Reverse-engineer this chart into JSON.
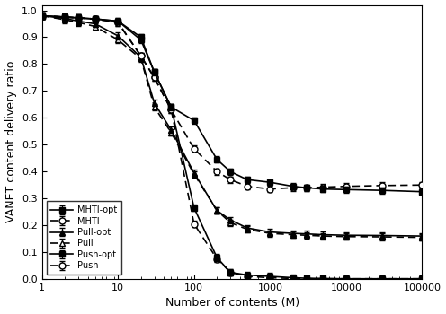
{
  "x": [
    1,
    2,
    3,
    5,
    10,
    20,
    30,
    50,
    100,
    200,
    300,
    500,
    1000,
    2000,
    3000,
    5000,
    10000,
    30000,
    100000
  ],
  "MHTI_opt": [
    0.98,
    0.975,
    0.972,
    0.968,
    0.96,
    0.9,
    0.77,
    0.64,
    0.59,
    0.445,
    0.4,
    0.37,
    0.36,
    0.345,
    0.34,
    0.335,
    0.333,
    0.33,
    0.325
  ],
  "MHTI": [
    0.98,
    0.975,
    0.972,
    0.968,
    0.955,
    0.83,
    0.75,
    0.63,
    0.485,
    0.4,
    0.37,
    0.345,
    0.335,
    0.34,
    0.34,
    0.342,
    0.345,
    0.348,
    0.35
  ],
  "Pull_opt": [
    0.98,
    0.97,
    0.96,
    0.95,
    0.905,
    0.825,
    0.655,
    0.555,
    0.395,
    0.255,
    0.22,
    0.19,
    0.175,
    0.17,
    0.168,
    0.165,
    0.163,
    0.162,
    0.16
  ],
  "Pull": [
    0.98,
    0.965,
    0.955,
    0.94,
    0.89,
    0.82,
    0.64,
    0.545,
    0.39,
    0.255,
    0.21,
    0.185,
    0.17,
    0.165,
    0.163,
    0.16,
    0.158,
    0.157,
    0.155
  ],
  "Push_opt": [
    0.98,
    0.975,
    0.972,
    0.968,
    0.96,
    0.89,
    0.77,
    0.64,
    0.265,
    0.08,
    0.025,
    0.015,
    0.01,
    0.005,
    0.003,
    0.002,
    0.001,
    0.001,
    0.001
  ],
  "Push": [
    0.98,
    0.975,
    0.972,
    0.968,
    0.955,
    0.83,
    0.75,
    0.63,
    0.205,
    0.075,
    0.025,
    0.01,
    0.005,
    0.002,
    0.001,
    0.001,
    0.001,
    0.001,
    0.001
  ],
  "ylabel": "VANET content delivery ratio",
  "xlabel": "Number of contents (M)",
  "ylim": [
    0.0,
    1.02
  ],
  "yticks": [
    0.0,
    0.1,
    0.2,
    0.3,
    0.4,
    0.5,
    0.6,
    0.7,
    0.8,
    0.9,
    1.0
  ]
}
